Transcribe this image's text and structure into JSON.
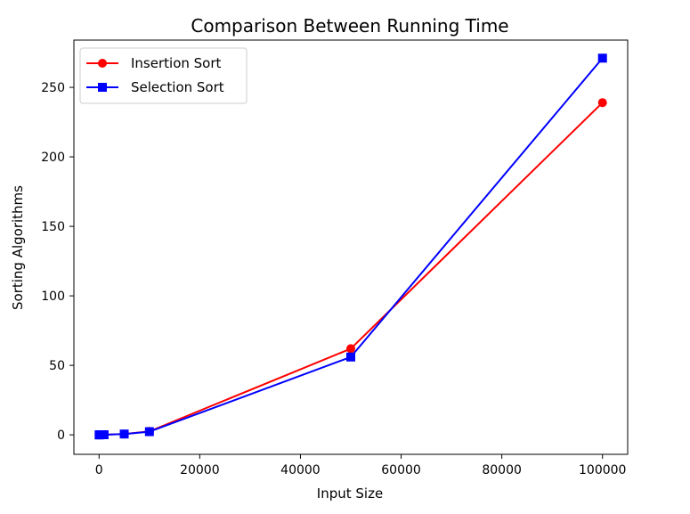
{
  "chart_data": {
    "type": "line",
    "title": "Comparison Between Running Time",
    "xlabel": "Input Size",
    "ylabel": "Sorting Algorithms",
    "xlim": [
      -5000,
      105000
    ],
    "ylim": [
      -14,
      284
    ],
    "xticks": [
      0,
      20000,
      40000,
      60000,
      80000,
      100000
    ],
    "yticks": [
      0,
      50,
      100,
      150,
      200,
      250
    ],
    "x": [
      10,
      100,
      500,
      1000,
      5000,
      10000,
      50000,
      100000
    ],
    "series": [
      {
        "name": "Insertion Sort",
        "color": "#ff0000",
        "marker": "circle",
        "values": [
          0,
          0,
          0.1,
          0.1,
          0.6,
          2.5,
          62,
          239
        ]
      },
      {
        "name": "Selection Sort",
        "color": "#0000ff",
        "marker": "square",
        "values": [
          0,
          0,
          0.1,
          0.1,
          0.6,
          2.3,
          56,
          271
        ]
      }
    ],
    "grid": false,
    "legend": "top-left"
  }
}
